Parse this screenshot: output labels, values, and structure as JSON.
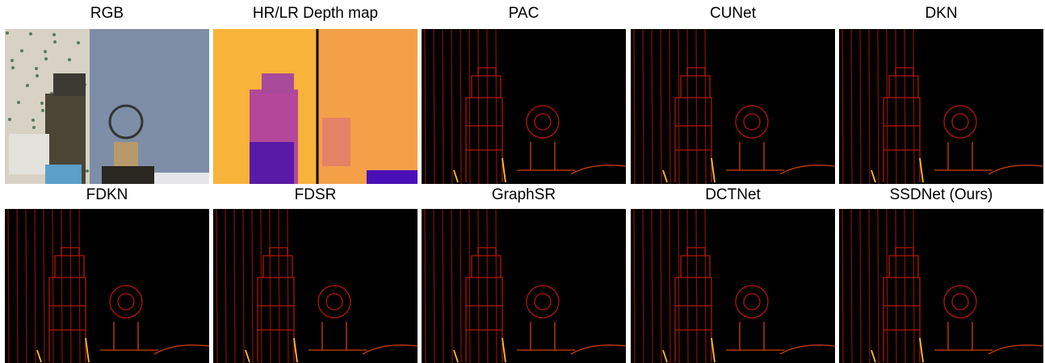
{
  "panels": [
    {
      "label": "RGB"
    },
    {
      "label": "HR/LR Depth map"
    },
    {
      "label": "PAC"
    },
    {
      "label": "CUNet"
    },
    {
      "label": "DKN"
    },
    {
      "label": "FDKN"
    },
    {
      "label": "FDSR"
    },
    {
      "label": "GraphSR"
    },
    {
      "label": "DCTNet"
    },
    {
      "label": "SSDNet (Ours)"
    }
  ]
}
